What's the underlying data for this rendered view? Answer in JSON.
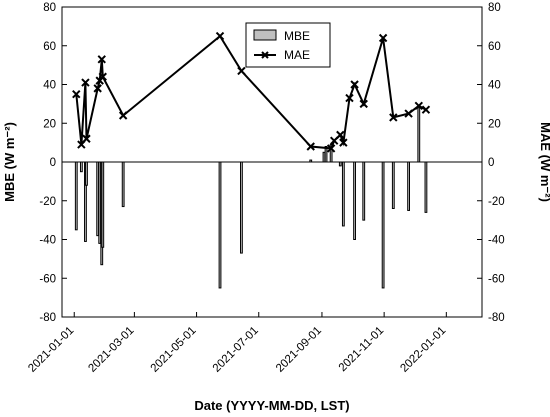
{
  "chart_data": {
    "type": "bar",
    "title": "",
    "xlabel": "Date (YYYY-MM-DD, LST)",
    "ylabel_left": "MBE (W m⁻²)",
    "ylabel_right": "MAE (W m⁻²)",
    "ylim": [
      -80,
      80
    ],
    "yticks": [
      -80,
      -60,
      -40,
      -20,
      0,
      20,
      40,
      60,
      80
    ],
    "xlim": [
      "2020-12-20",
      "2022-02-05"
    ],
    "xticks": [
      "2021-01-01",
      "2021-03-01",
      "2021-05-01",
      "2021-07-01",
      "2021-09-01",
      "2021-11-01",
      "2022-01-01"
    ],
    "legend_position": "top-center",
    "series": [
      {
        "name": "MBE",
        "kind": "bar",
        "color": "#c0c0c0",
        "points": [
          {
            "x": "2021-01-03",
            "y": -35
          },
          {
            "x": "2021-01-08",
            "y": -5
          },
          {
            "x": "2021-01-12",
            "y": -41
          },
          {
            "x": "2021-01-13",
            "y": -12
          },
          {
            "x": "2021-01-24",
            "y": -38
          },
          {
            "x": "2021-01-26",
            "y": -42
          },
          {
            "x": "2021-01-28",
            "y": -53
          },
          {
            "x": "2021-01-29",
            "y": -44
          },
          {
            "x": "2021-02-18",
            "y": -23
          },
          {
            "x": "2021-05-24",
            "y": -65
          },
          {
            "x": "2021-06-14",
            "y": -47
          },
          {
            "x": "2021-08-21",
            "y": 1
          },
          {
            "x": "2021-09-03",
            "y": 5
          },
          {
            "x": "2021-09-05",
            "y": 8
          },
          {
            "x": "2021-09-10",
            "y": 9
          },
          {
            "x": "2021-09-19",
            "y": -2
          },
          {
            "x": "2021-09-22",
            "y": -33
          },
          {
            "x": "2021-10-03",
            "y": -40
          },
          {
            "x": "2021-10-12",
            "y": -30
          },
          {
            "x": "2021-10-31",
            "y": -65
          },
          {
            "x": "2021-11-10",
            "y": -24
          },
          {
            "x": "2021-11-25",
            "y": -25
          },
          {
            "x": "2021-12-05",
            "y": 28
          },
          {
            "x": "2021-12-12",
            "y": -26
          }
        ]
      },
      {
        "name": "MAE",
        "kind": "line",
        "marker": "x",
        "color": "#000000",
        "points": [
          {
            "x": "2021-01-03",
            "y": 35
          },
          {
            "x": "2021-01-08",
            "y": 9
          },
          {
            "x": "2021-01-12",
            "y": 41
          },
          {
            "x": "2021-01-13",
            "y": 12
          },
          {
            "x": "2021-01-24",
            "y": 38
          },
          {
            "x": "2021-01-26",
            "y": 42
          },
          {
            "x": "2021-01-28",
            "y": 53
          },
          {
            "x": "2021-01-29",
            "y": 44
          },
          {
            "x": "2021-02-18",
            "y": 24
          },
          {
            "x": "2021-05-24",
            "y": 65
          },
          {
            "x": "2021-06-14",
            "y": 47
          },
          {
            "x": "2021-08-21",
            "y": 8
          },
          {
            "x": "2021-09-10",
            "y": 7
          },
          {
            "x": "2021-09-13",
            "y": 11
          },
          {
            "x": "2021-09-19",
            "y": 14
          },
          {
            "x": "2021-09-22",
            "y": 10
          },
          {
            "x": "2021-09-28",
            "y": 33
          },
          {
            "x": "2021-10-03",
            "y": 40
          },
          {
            "x": "2021-10-12",
            "y": 30
          },
          {
            "x": "2021-10-31",
            "y": 64
          },
          {
            "x": "2021-11-10",
            "y": 23
          },
          {
            "x": "2021-11-25",
            "y": 25
          },
          {
            "x": "2021-12-05",
            "y": 29
          },
          {
            "x": "2021-12-12",
            "y": 27
          }
        ]
      }
    ]
  }
}
